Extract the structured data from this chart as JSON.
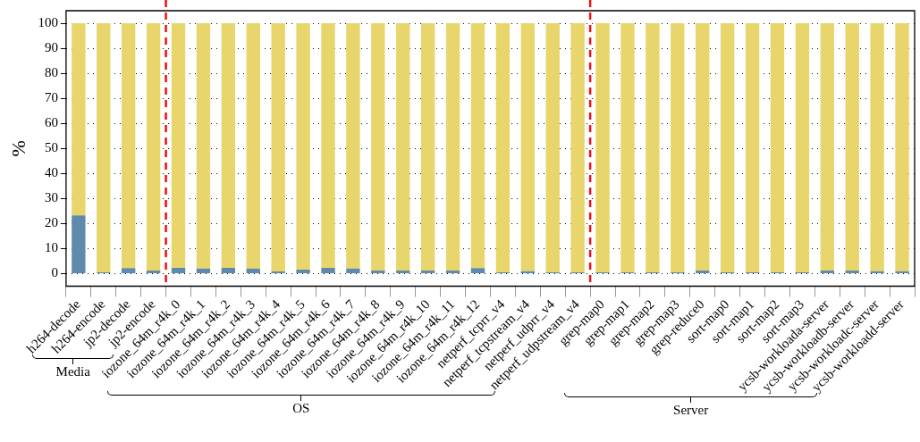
{
  "chart_data": {
    "type": "bar",
    "stacked": true,
    "ylabel": "%",
    "categories": [
      "h264-decode",
      "h264-encode",
      "jp2-decode",
      "jp2-encode",
      "iozone_64m_r4k_0",
      "iozone_64m_r4k_1",
      "iozone_64m_r4k_2",
      "iozone_64m_r4k_3",
      "iozone_64m_r4k_4",
      "iozone_64m_r4k_5",
      "iozone_64m_r4k_6",
      "iozone_64m_r4k_7",
      "iozone_64m_r4k_8",
      "iozone_64m_r4k_9",
      "iozone_64m_r4k_10",
      "iozone_64m_r4k_11",
      "iozone_64m_r4k_12",
      "netperf_tcprr_v4",
      "netperf_tcpstream_v4",
      "netperf_udprr_v4",
      "netperf_udpstream_v4",
      "grep-map0",
      "grep-map1",
      "grep-map2",
      "grep-map3",
      "grep-reduce0",
      "sort-map0",
      "sort-map1",
      "sort-map2",
      "sort-map3",
      "ycsb-workloada-server",
      "ycsb-workloadb-server",
      "ycsb-workloadc-server",
      "ycsb-workloadd-server"
    ],
    "series": [
      {
        "color": "#5f8aab",
        "values": [
          23.3,
          0.5,
          2.2,
          1.2,
          2.3,
          2.0,
          2.3,
          2.0,
          0.9,
          1.6,
          2.3,
          2.0,
          1.2,
          1.2,
          1.2,
          1.2,
          2.2,
          0.5,
          1.0,
          0.5,
          0.5,
          0.5,
          0.5,
          0.5,
          0.5,
          1.2,
          0.5,
          0.5,
          0.5,
          0.5,
          1.2,
          1.2,
          1.0,
          1.0
        ]
      },
      {
        "color": "#e8d56b",
        "values": [
          76.7,
          99.5,
          97.8,
          98.8,
          97.7,
          98.0,
          97.7,
          98.0,
          99.1,
          98.4,
          97.7,
          98.0,
          98.8,
          98.8,
          98.8,
          98.8,
          97.8,
          99.5,
          99.0,
          99.5,
          99.5,
          99.5,
          99.5,
          99.5,
          99.5,
          98.8,
          99.5,
          99.5,
          99.5,
          99.5,
          98.8,
          98.8,
          99.0,
          99.0
        ]
      }
    ],
    "ylim": [
      -5,
      105
    ],
    "yticks": [
      0,
      10,
      20,
      30,
      40,
      50,
      60,
      70,
      80,
      90,
      100
    ],
    "grid": "y",
    "legend": false,
    "annotations": [
      "Media",
      "OS",
      "Server"
    ]
  }
}
